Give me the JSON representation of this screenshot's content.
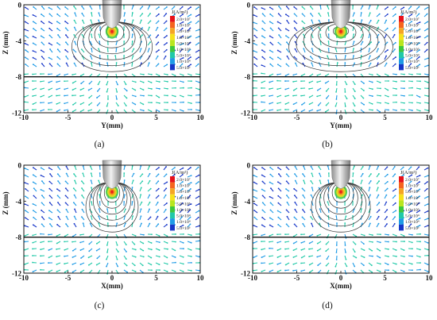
{
  "figure": {
    "legend_title": "J(A/m²)",
    "legend_levels": [
      "2.0×10⁷",
      "1.0×10⁷",
      "5.0×10⁶",
      "1.0×10⁶",
      "5.0×10⁵",
      "1.0×10⁵",
      "5.0×10⁴",
      "1.0×10⁴",
      "5.0×10³"
    ],
    "legend_colors": [
      "#e8121a",
      "#f5641e",
      "#f5a623",
      "#f7e11a",
      "#b8e61e",
      "#3ec83c",
      "#21c9a8",
      "#1e9be6",
      "#1636c8"
    ],
    "ylabel": "Z (mm)",
    "z_ticks": [
      0,
      -4,
      -8,
      -12
    ],
    "x_ticks": [
      -10,
      -5,
      0,
      5,
      10
    ],
    "interface_z": -8,
    "panels": [
      {
        "caption": "(a)",
        "xlabel": "Y(mm)",
        "contour_width": 0.85
      },
      {
        "caption": "(b)",
        "xlabel": "Y(mm)",
        "contour_width": 1.1
      },
      {
        "caption": "(c)",
        "xlabel": "X(mm)",
        "contour_width": 0.55
      },
      {
        "caption": "(d)",
        "xlabel": "X(mm)",
        "contour_width": 0.62
      }
    ]
  }
}
